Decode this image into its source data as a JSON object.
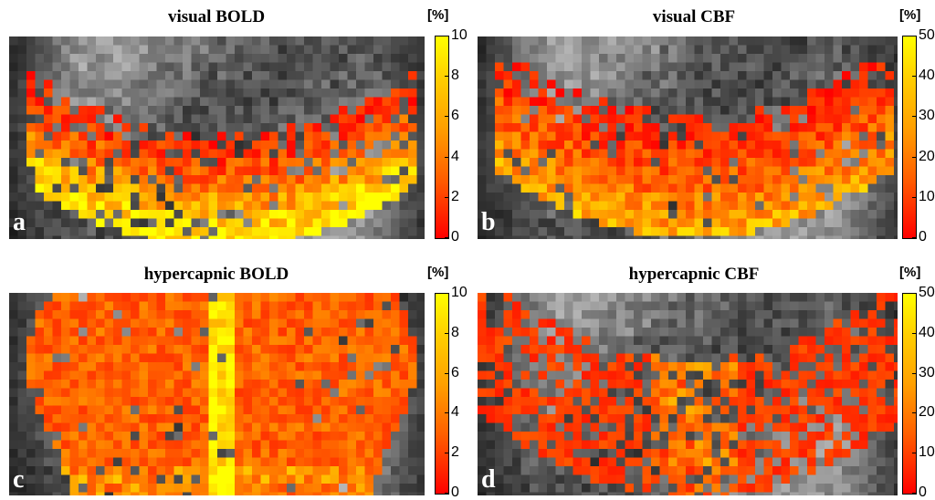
{
  "panels": [
    {
      "id": "a",
      "title": "visual BOLD",
      "letter": "a",
      "unit": "[%]",
      "colorbar": {
        "min": 0,
        "max": 10,
        "ticks": [
          "10",
          "8",
          "6",
          "4",
          "2",
          "0"
        ]
      }
    },
    {
      "id": "b",
      "title": "visual CBF",
      "letter": "b",
      "unit": "[%]",
      "colorbar": {
        "min": 0,
        "max": 50,
        "ticks": [
          "50",
          "40",
          "30",
          "20",
          "10",
          "0"
        ]
      }
    },
    {
      "id": "c",
      "title": "hypercapnic BOLD",
      "letter": "c",
      "unit": "[%]",
      "colorbar": {
        "min": 0,
        "max": 10,
        "ticks": [
          "10",
          "8",
          "6",
          "4",
          "2",
          "0"
        ]
      }
    },
    {
      "id": "d",
      "title": "hypercapnic CBF",
      "letter": "d",
      "unit": "[%]",
      "colorbar": {
        "min": 0,
        "max": 50,
        "ticks": [
          "50",
          "40",
          "30",
          "20",
          "10",
          "0"
        ]
      }
    }
  ],
  "colormap": {
    "low": "#ff0000",
    "mid": "#ff8000",
    "high": "#ffff00",
    "background": "grayscale anatomical"
  }
}
